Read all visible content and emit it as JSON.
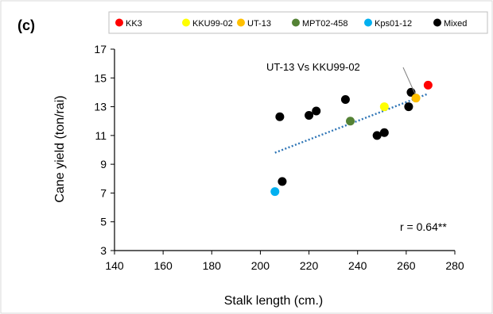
{
  "panel_label": "(c)",
  "annotation": "UT-13 Vs KKU99-02",
  "correlation": "r = 0.64**",
  "colors": {
    "KK3": "#ff0000",
    "KKU99-02": "#ffff00",
    "UT-13": "#ffc000",
    "MPT02-458": "#548235",
    "Kps01-12": "#00b0f0",
    "Mixed": "#000000",
    "trendline": "#2e75b6",
    "axis": "#000000",
    "leader": "#7f7f7f"
  },
  "chart_data": {
    "type": "scatter",
    "xlabel": "Stalk length (cm.)",
    "ylabel": "Cane yield (ton/rai)",
    "xlim": [
      140,
      280
    ],
    "ylim": [
      3,
      17
    ],
    "xticks": [
      140,
      160,
      180,
      200,
      220,
      240,
      260,
      280
    ],
    "yticks": [
      3,
      5,
      7,
      9,
      11,
      13,
      15,
      17
    ],
    "grid": false,
    "legend_position": "top",
    "series": [
      {
        "name": "KK3",
        "points": [
          [
            269,
            14.5
          ]
        ]
      },
      {
        "name": "KKU99-02",
        "points": [
          [
            251,
            13.0
          ]
        ]
      },
      {
        "name": "UT-13",
        "points": [
          [
            264,
            13.6
          ]
        ]
      },
      {
        "name": "MPT02-458",
        "points": [
          [
            237,
            12.0
          ]
        ]
      },
      {
        "name": "Kps01-12",
        "points": [
          [
            206,
            7.1
          ]
        ]
      },
      {
        "name": "Mixed",
        "points": [
          [
            208,
            12.3
          ],
          [
            209,
            7.8
          ],
          [
            220,
            12.4
          ],
          [
            223,
            12.7
          ],
          [
            235,
            13.5
          ],
          [
            248,
            11.0
          ],
          [
            251,
            11.2
          ],
          [
            261,
            13.0
          ],
          [
            262,
            14.0
          ]
        ]
      }
    ],
    "trendline": {
      "x": [
        206,
        269
      ],
      "y": [
        9.8,
        13.9
      ],
      "style": "dotted"
    }
  }
}
